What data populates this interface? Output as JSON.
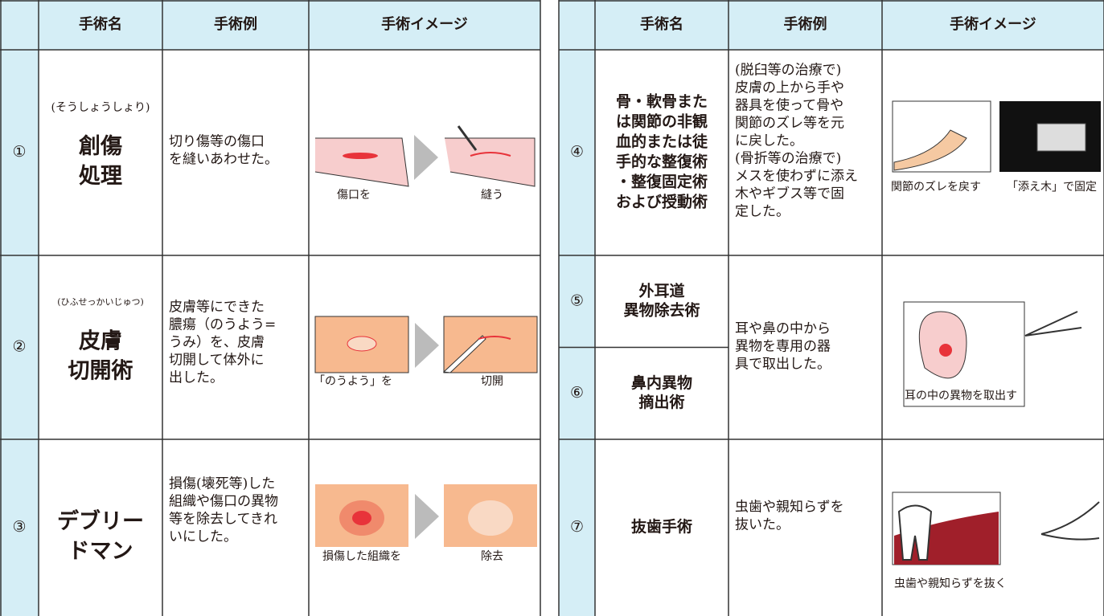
{
  "left_table": {
    "headers": [
      "手術名",
      "手術例",
      "手術イメージ"
    ],
    "rows": [
      {
        "number": "①",
        "reading": "(そうしょうしょり)",
        "name": [
          "創傷",
          "処理"
        ],
        "example": [
          "切り傷等の傷口",
          "を縫いあわせた。"
        ],
        "captions": [
          "傷口を",
          "縫う"
        ]
      },
      {
        "number": "②",
        "reading": "(ひふせっかいじゅつ)",
        "name": [
          "皮膚",
          "切開術"
        ],
        "example": [
          "皮膚等にできた",
          "膿瘍（のうよう=",
          "うみ）を、皮膚",
          "切開して体外に",
          "出した。"
        ],
        "captions": [
          "「のうよう」を",
          "切開"
        ]
      },
      {
        "number": "③",
        "name": [
          "デブリー",
          "ドマン"
        ],
        "example": [
          "損傷(壊死等)した",
          "組織や傷口の異物",
          "等を除去してきれ",
          "いにした。"
        ],
        "captions": [
          "損傷した組織を",
          "除去"
        ]
      }
    ]
  },
  "right_table": {
    "headers": [
      "手術名",
      "手術例",
      "手術イメージ"
    ],
    "rows": [
      {
        "entries": [
          {
            "number": "④",
            "name": [
              "骨・軟骨また",
              "は関節の非観",
              "血的または徒",
              "手的な整復術",
              "・整復固定術",
              "および授動術"
            ]
          }
        ],
        "example": [
          "(脱臼等の治療で)",
          "皮膚の上から手や",
          "器具を使って骨や",
          "関節のズレ等を元",
          "に戻した。",
          "(骨折等の治療で)",
          "メスを使わずに添え",
          "木やギブス等で固",
          "定した。"
        ],
        "captions": [
          "関節のズレを戻す",
          "「添え木」で固定"
        ]
      },
      {
        "entries": [
          {
            "number": "⑤",
            "name": [
              "外耳道",
              "異物除去術"
            ]
          },
          {
            "number": "⑥",
            "name": [
              "鼻内異物",
              "摘出術"
            ]
          }
        ],
        "example": [
          "耳や鼻の中から",
          "異物を専用の器",
          "具で取出した。"
        ],
        "captions": [
          "耳の中の異物を取出す"
        ]
      },
      {
        "entries": [
          {
            "number": "⑦",
            "name": [
              "抜歯手術"
            ]
          }
        ],
        "example": [
          "虫歯や親知らずを",
          "抜いた。"
        ],
        "captions": [
          "虫歯や親知らずを抜く"
        ]
      }
    ]
  }
}
